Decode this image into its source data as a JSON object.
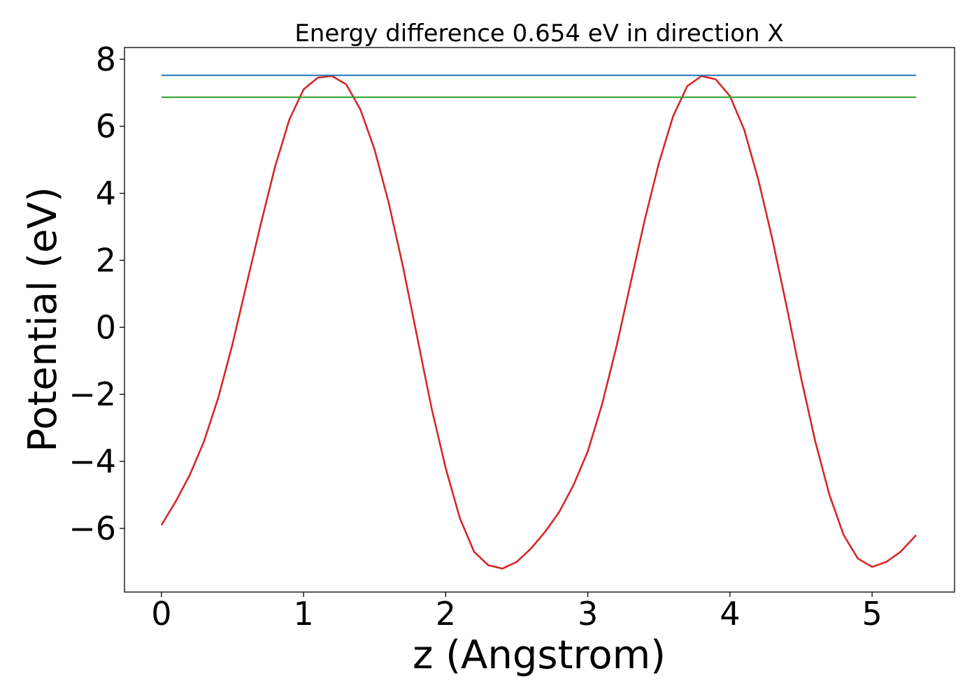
{
  "chart_data": {
    "type": "line",
    "title": "Energy difference 0.654 eV in direction X",
    "xlabel": "z (Angstrom)",
    "ylabel": "Potential (eV)",
    "xlim": [
      -0.26,
      5.58
    ],
    "ylim": [
      -7.9,
      8.35
    ],
    "xticks": [
      0,
      1,
      2,
      3,
      4,
      5
    ],
    "xtick_labels": [
      "0",
      "1",
      "2",
      "3",
      "4",
      "5"
    ],
    "yticks": [
      -6,
      -4,
      -2,
      0,
      2,
      4,
      6,
      8
    ],
    "ytick_labels": [
      "−6",
      "−4",
      "−2",
      "0",
      "2",
      "4",
      "6",
      "8"
    ],
    "grid": false,
    "series": [
      {
        "color": "#d62728",
        "x": [
          0,
          0.1,
          0.2,
          0.3,
          0.4,
          0.5,
          0.6,
          0.7,
          0.8,
          0.9,
          1.0,
          1.1,
          1.2,
          1.3,
          1.4,
          1.5,
          1.6,
          1.7,
          1.8,
          1.9,
          2.0,
          2.1,
          2.2,
          2.3,
          2.4,
          2.5,
          2.6,
          2.7,
          2.8,
          2.9,
          3.0,
          3.1,
          3.2,
          3.3,
          3.4,
          3.5,
          3.6,
          3.7,
          3.8,
          3.9,
          4.0,
          4.1,
          4.2,
          4.3,
          4.4,
          4.5,
          4.6,
          4.7,
          4.8,
          4.9,
          5.0,
          5.1,
          5.2,
          5.31
        ],
        "y": [
          -5.9,
          -5.2,
          -4.4,
          -3.4,
          -2.1,
          -0.5,
          1.3,
          3.1,
          4.8,
          6.2,
          7.1,
          7.45,
          7.5,
          7.25,
          6.5,
          5.3,
          3.7,
          1.8,
          -0.3,
          -2.4,
          -4.2,
          -5.7,
          -6.7,
          -7.1,
          -7.2,
          -7.0,
          -6.6,
          -6.1,
          -5.5,
          -4.7,
          -3.7,
          -2.3,
          -0.6,
          1.3,
          3.2,
          4.9,
          6.3,
          7.2,
          7.5,
          7.4,
          6.9,
          5.9,
          4.4,
          2.6,
          0.6,
          -1.5,
          -3.4,
          -5.0,
          -6.2,
          -6.9,
          -7.15,
          -7.0,
          -6.7,
          -6.2
        ]
      },
      {
        "color": "#1f77b4",
        "x": [
          0,
          5.31
        ],
        "y": [
          7.52,
          7.52
        ]
      },
      {
        "color": "#2ca02c",
        "x": [
          0,
          5.31
        ],
        "y": [
          6.866,
          6.866
        ]
      }
    ]
  }
}
